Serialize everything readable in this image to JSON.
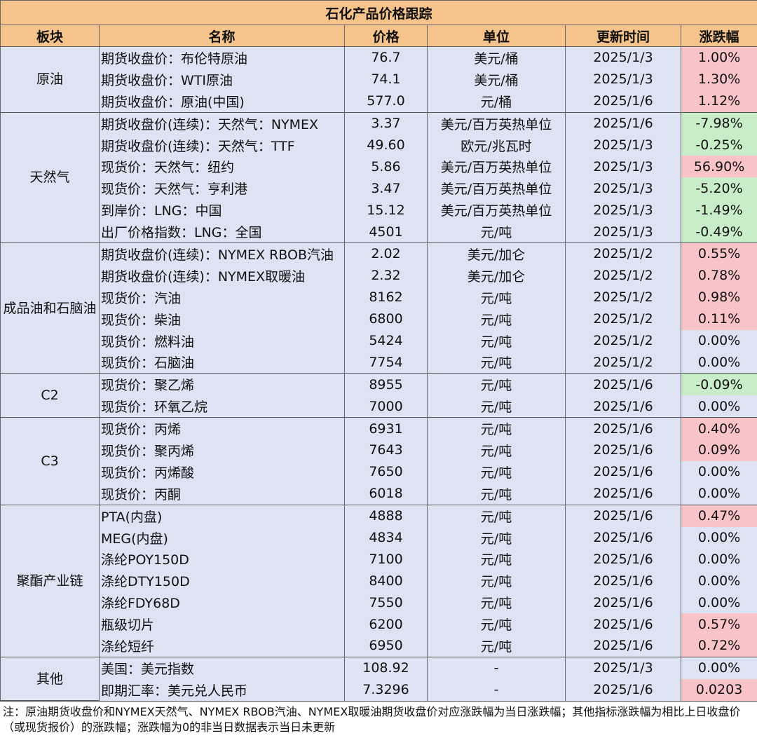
{
  "table": {
    "title": "石化产品价格跟踪",
    "headers": [
      "板块",
      "名称",
      "价格",
      "单位",
      "更新时间",
      "涨跌幅"
    ],
    "groups": [
      {
        "name": "原油",
        "rows": [
          [
            "期货收盘价：布伦特原油",
            "76.7",
            "美元/桶",
            "2025/1/3",
            "1.00%"
          ],
          [
            "期货收盘价：WTI原油",
            "74.1",
            "美元/桶",
            "2025/1/3",
            "1.30%"
          ],
          [
            "期货收盘价：原油(中国)",
            "577.0",
            "元/桶",
            "2025/1/6",
            "1.12%"
          ]
        ]
      },
      {
        "name": "天然气",
        "rows": [
          [
            "期货收盘价(连续)：天然气：NYMEX",
            "3.37",
            "美元/百万英热单位",
            "2025/1/6",
            "-7.98%"
          ],
          [
            "期货收盘价(连续)：天然气：TTF",
            "49.60",
            "欧元/兆瓦时",
            "2025/1/3",
            "-0.25%"
          ],
          [
            "现货价：天然气：纽约",
            "5.86",
            "美元/百万英热单位",
            "2025/1/3",
            "56.90%"
          ],
          [
            "现货价：天然气：亨利港",
            "3.47",
            "美元/百万英热单位",
            "2025/1/3",
            "-5.20%"
          ],
          [
            "到岸价：LNG：中国",
            "15.12",
            "美元/百万英热单位",
            "2025/1/3",
            "-1.49%"
          ],
          [
            "出厂价格指数：LNG：全国",
            "4501",
            "元/吨",
            "2025/1/3",
            "-0.49%"
          ]
        ]
      },
      {
        "name": "成品油和石脑油",
        "rows": [
          [
            "期货收盘价(连续)：NYMEX RBOB汽油",
            "2.02",
            "美元/加仑",
            "2025/1/2",
            "0.55%"
          ],
          [
            "期货收盘价(连续)：NYMEX取暖油",
            "2.32",
            "美元/加仑",
            "2025/1/2",
            "0.78%"
          ],
          [
            "现货价：汽油",
            "8162",
            "元/吨",
            "2025/1/2",
            "0.98%"
          ],
          [
            "现货价：柴油",
            "6800",
            "元/吨",
            "2025/1/2",
            "0.11%"
          ],
          [
            "现货价：燃料油",
            "5424",
            "元/吨",
            "2025/1/2",
            "0.00%"
          ],
          [
            "现货价：石脑油",
            "7754",
            "元/吨",
            "2025/1/2",
            "0.00%"
          ]
        ]
      },
      {
        "name": "C2",
        "rows": [
          [
            "现货价：聚乙烯",
            "8955",
            "元/吨",
            "2025/1/6",
            "-0.09%"
          ],
          [
            "现货价：环氧乙烷",
            "7000",
            "元/吨",
            "2025/1/6",
            "0.00%"
          ]
        ]
      },
      {
        "name": "C3",
        "rows": [
          [
            "现货价：丙烯",
            "6931",
            "元/吨",
            "2025/1/6",
            "0.40%"
          ],
          [
            "现货价：聚丙烯",
            "7643",
            "元/吨",
            "2025/1/6",
            "0.09%"
          ],
          [
            "现货价：丙烯酸",
            "7650",
            "元/吨",
            "2025/1/6",
            "0.00%"
          ],
          [
            "现货价：丙酮",
            "6018",
            "元/吨",
            "2025/1/6",
            "0.00%"
          ]
        ]
      },
      {
        "name": "聚酯产业链",
        "rows": [
          [
            "PTA(内盘)",
            "4888",
            "元/吨",
            "2025/1/6",
            "0.47%"
          ],
          [
            "MEG(内盘)",
            "4834",
            "元/吨",
            "2025/1/6",
            "0.00%"
          ],
          [
            "涤纶POY150D",
            "7100",
            "元/吨",
            "2025/1/6",
            "0.00%"
          ],
          [
            "涤纶DTY150D",
            "8400",
            "元/吨",
            "2025/1/6",
            "0.00%"
          ],
          [
            "涤纶FDY68D",
            "7550",
            "元/吨",
            "2025/1/6",
            "0.00%"
          ],
          [
            "瓶级切片",
            "6200",
            "元/吨",
            "2025/1/6",
            "0.57%"
          ],
          [
            "涤纶短纤",
            "6950",
            "元/吨",
            "2025/1/6",
            "0.72%"
          ]
        ]
      },
      {
        "name": "其他",
        "rows": [
          [
            "美国：美元指数",
            "108.92",
            "-",
            "2025/1/3",
            "0.00%"
          ],
          [
            "即期汇率：美元兑人民币",
            "7.3296",
            "-",
            "2025/1/6",
            "0.0203"
          ]
        ]
      }
    ],
    "note": "注：原油期货收盘价和NYMEX天然气、NYMEX RBOB汽油、NYMEX取暖油期货收盘价对应涨跌幅为当日涨跌幅；其他指标涨跌幅为相比上日收盘价（或现货报价）的涨跌幅；涨跌幅为0的非当日数据表示当日未更新"
  }
}
